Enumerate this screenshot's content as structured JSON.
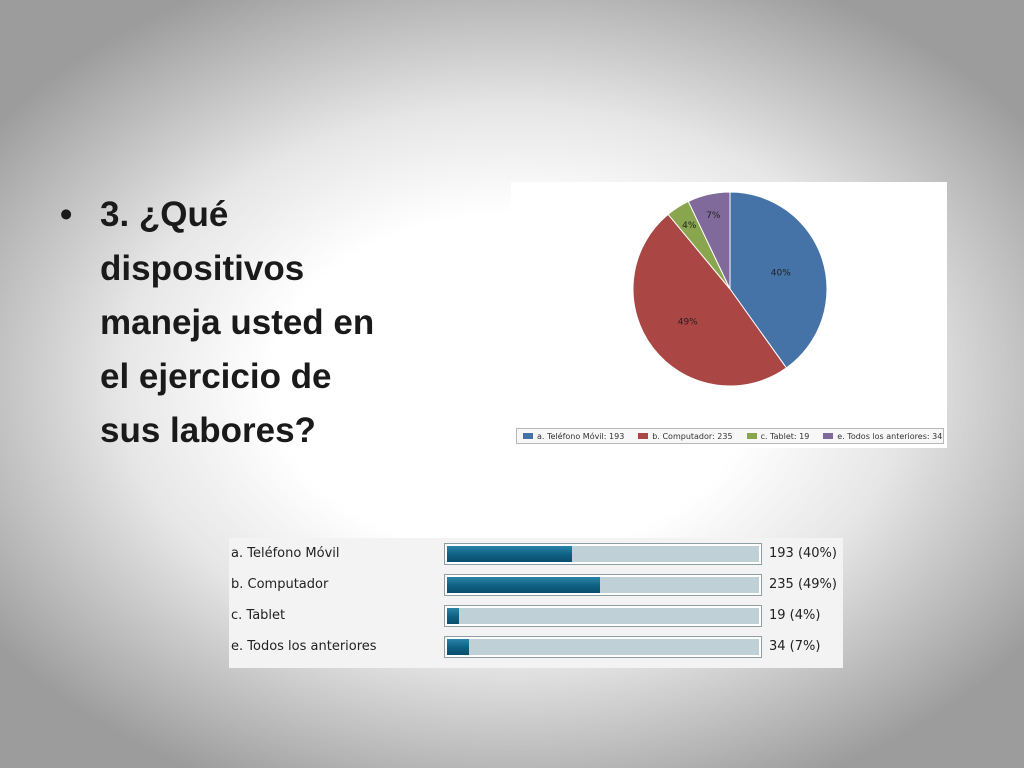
{
  "slide": {
    "bullet": "•",
    "question": "3. ¿Qué dispositivos maneja usted en el ejercicio de sus labores?"
  },
  "chart_data": [
    {
      "type": "pie",
      "slices": [
        {
          "label": "a. Teléfono Móvil: 193",
          "value": 193,
          "percent_label": "40%",
          "color": "#4572a7"
        },
        {
          "label": "b. Computador: 235",
          "value": 235,
          "percent_label": "49%",
          "color": "#aa4643"
        },
        {
          "label": "c. Tablet: 19",
          "value": 19,
          "percent_label": "4%",
          "color": "#89a54e"
        },
        {
          "label": "e. Todos los anteriores: 34",
          "value": 34,
          "percent_label": "7%",
          "color": "#80699b"
        }
      ],
      "legend_position": "bottom"
    },
    {
      "type": "bar",
      "orientation": "horizontal",
      "categories": [
        "a. Teléfono Móvil",
        "b. Computador",
        "c. Tablet",
        "e. Todos los anteriores"
      ],
      "values": [
        193,
        235,
        19,
        34
      ],
      "percents": [
        40,
        49,
        4,
        7
      ],
      "value_labels": [
        "193 (40%)",
        "235 (49%)",
        "19 (4%)",
        "34 (7%)"
      ],
      "bar_color": "#0e5f82",
      "track_color": "#bfd0d6"
    }
  ]
}
